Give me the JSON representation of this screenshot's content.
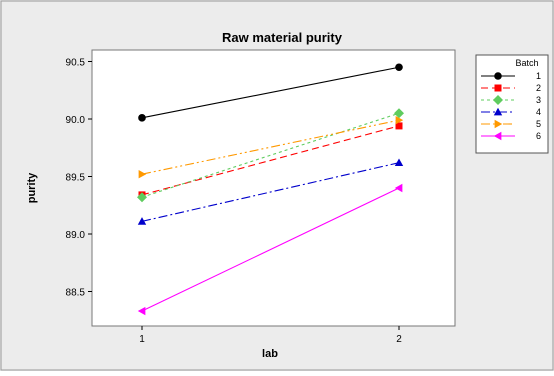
{
  "chart_data": {
    "type": "line",
    "title": "Raw material purity",
    "xlabel": "lab",
    "ylabel": "purity",
    "categories": [
      "1",
      "2"
    ],
    "ylim": [
      88.2,
      90.6
    ],
    "yticks": [
      "88.5",
      "89.0",
      "89.5",
      "90.0",
      "90.5"
    ],
    "grid": false,
    "legend_title": "Batch",
    "legend_position": "top-right",
    "series": [
      {
        "name": "1",
        "values": [
          90.01,
          90.45
        ],
        "color": "#000000",
        "marker": "circle",
        "dash": ""
      },
      {
        "name": "2",
        "values": [
          89.34,
          89.94
        ],
        "color": "#ff0000",
        "marker": "square",
        "dash": "7,4"
      },
      {
        "name": "3",
        "values": [
          89.32,
          90.05
        ],
        "color": "#5fcc5f",
        "marker": "diamond",
        "dash": "3,3"
      },
      {
        "name": "4",
        "values": [
          89.11,
          89.62
        ],
        "color": "#0000cc",
        "marker": "triangle-up",
        "dash": "9,3,2,3"
      },
      {
        "name": "5",
        "values": [
          89.52,
          89.99
        ],
        "color": "#ff9900",
        "marker": "triangle-right",
        "dash": "9,3,2,3,2,3"
      },
      {
        "name": "6",
        "values": [
          88.33,
          89.4
        ],
        "color": "#ff00ff",
        "marker": "triangle-left",
        "dash": ""
      }
    ],
    "colors": {
      "background": "#ffffff",
      "page": "#ececec",
      "plot_border": "#777777"
    }
  }
}
